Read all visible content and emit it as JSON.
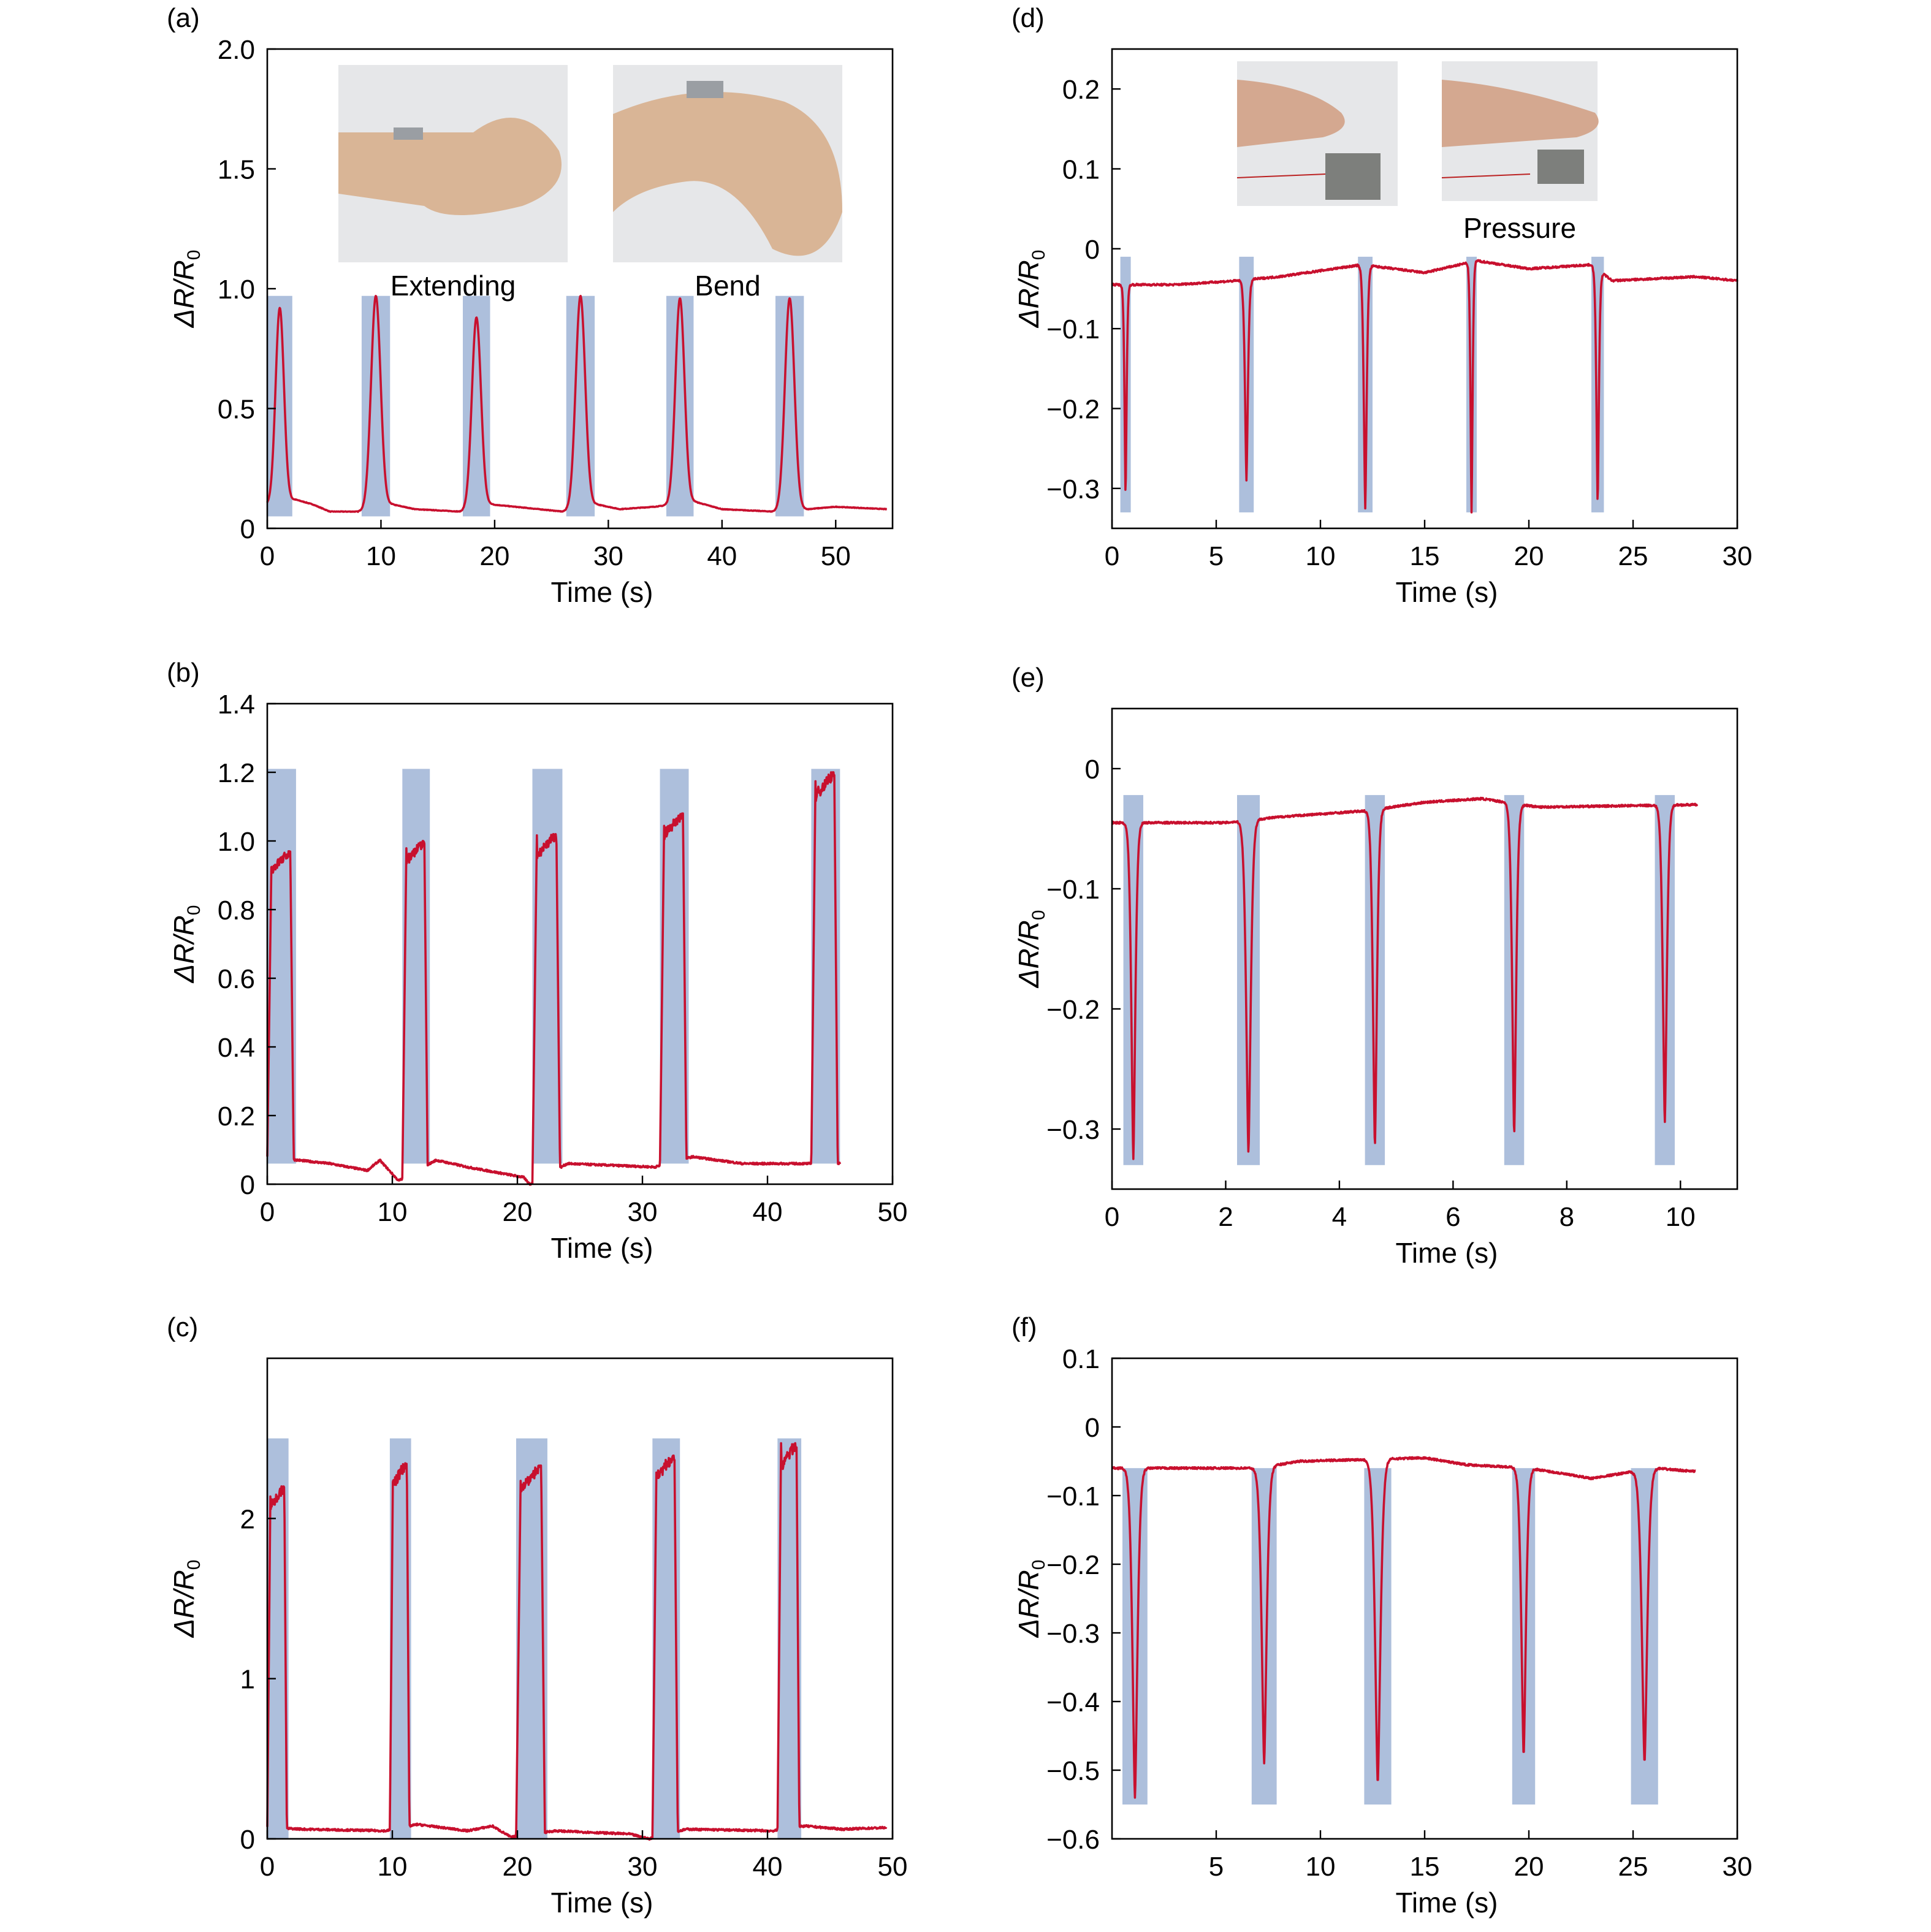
{
  "colors": {
    "trace": "#c8102e",
    "trace_dark": "#8b1a3a",
    "shade": "#9fb4d6",
    "axis": "#000000"
  },
  "chart_data": [
    {
      "panel": "(a)",
      "type": "line",
      "xlabel": "Time (s)",
      "ylabel_main": "ΔR/R",
      "ylabel_sub": "0",
      "xlim": [
        0,
        55
      ],
      "ylim": [
        0,
        2.0
      ],
      "xticks": [
        0,
        10,
        20,
        30,
        40,
        50
      ],
      "xtick_labels": [
        "0",
        "10",
        "20",
        "30",
        "40",
        "50"
      ],
      "yticks": [
        0,
        0.5,
        1.0,
        1.5,
        2.0
      ],
      "ytick_labels": [
        "0",
        "0.5",
        "1.0",
        "1.5",
        "2.0"
      ],
      "shape": "peak",
      "shade_y": [
        0.05,
        0.97
      ],
      "x_end": 54.5,
      "baseline": [
        [
          0,
          0.1
        ],
        [
          2.5,
          0.12
        ],
        [
          4,
          0.1
        ],
        [
          5.5,
          0.07
        ],
        [
          8,
          0.07
        ],
        [
          11,
          0.1
        ],
        [
          13,
          0.08
        ],
        [
          17,
          0.07
        ],
        [
          19.7,
          0.1
        ],
        [
          26,
          0.07
        ],
        [
          29,
          0.1
        ],
        [
          31,
          0.08
        ],
        [
          34,
          0.09
        ],
        [
          37.7,
          0.11
        ],
        [
          40,
          0.08
        ],
        [
          44.5,
          0.07
        ],
        [
          47.5,
          0.08
        ],
        [
          50,
          0.09
        ],
        [
          54.5,
          0.08
        ]
      ],
      "pulses": [
        [
          0,
          2.2,
          0.92
        ],
        [
          8.3,
          10.8,
          0.97
        ],
        [
          17.2,
          19.6,
          0.88
        ],
        [
          26.3,
          28.8,
          0.97
        ],
        [
          35.1,
          37.5,
          0.96
        ],
        [
          44.7,
          47.2,
          0.96
        ]
      ],
      "insets": [
        {
          "caption": "Extending"
        },
        {
          "caption": "Bend"
        }
      ]
    },
    {
      "panel": "(b)",
      "type": "line",
      "xlabel": "Time (s)",
      "ylabel_main": "ΔR/R",
      "ylabel_sub": "0",
      "xlim": [
        0,
        50
      ],
      "ylim": [
        0,
        1.4
      ],
      "xticks": [
        0,
        10,
        20,
        30,
        40,
        50
      ],
      "xtick_labels": [
        "0",
        "10",
        "20",
        "30",
        "40",
        "50"
      ],
      "yticks": [
        0,
        0.2,
        0.4,
        0.6,
        0.8,
        1.0,
        1.2,
        1.4
      ],
      "ytick_labels": [
        "0",
        "0.2",
        "0.4",
        "0.6",
        "0.8",
        "1.0",
        "1.2",
        "1.4"
      ],
      "shape": "square",
      "shade_y": [
        0.06,
        1.21
      ],
      "x_end": 45.8,
      "baseline": [
        [
          0,
          0.08
        ],
        [
          5,
          0.06
        ],
        [
          8,
          0.04
        ],
        [
          9,
          0.07
        ],
        [
          10.5,
          0.01
        ],
        [
          13.5,
          0.07
        ],
        [
          16,
          0.05
        ],
        [
          20.5,
          0.02
        ],
        [
          21,
          0.0
        ],
        [
          24,
          0.06
        ],
        [
          31,
          0.05
        ],
        [
          34,
          0.08
        ],
        [
          38,
          0.06
        ],
        [
          43.5,
          0.06
        ],
        [
          45.8,
          0.06
        ]
      ],
      "pulses": [
        [
          0,
          2.3,
          0.97
        ],
        [
          10.8,
          13,
          1.0
        ],
        [
          21.2,
          23.6,
          1.02
        ],
        [
          31.4,
          33.7,
          1.08
        ],
        [
          43.5,
          45.8,
          1.2
        ]
      ]
    },
    {
      "panel": "(c)",
      "type": "line",
      "xlabel": "Time (s)",
      "ylabel_main": "ΔR/R",
      "ylabel_sub": "0",
      "xlim": [
        0,
        50
      ],
      "ylim": [
        0,
        3
      ],
      "xticks": [
        0,
        10,
        20,
        30,
        40,
        50
      ],
      "xtick_labels": [
        "0",
        "10",
        "20",
        "30",
        "40",
        "50"
      ],
      "yticks": [
        0,
        1,
        2
      ],
      "ytick_labels": [
        "0",
        "1",
        "2"
      ],
      "shape": "square",
      "shade_y": [
        0,
        2.5
      ],
      "x_end": 49.5,
      "baseline": [
        [
          0,
          0.07
        ],
        [
          3,
          0.06
        ],
        [
          9.5,
          0.05
        ],
        [
          12,
          0.09
        ],
        [
          16,
          0.05
        ],
        [
          18,
          0.08
        ],
        [
          19.5,
          0.01
        ],
        [
          23,
          0.05
        ],
        [
          29,
          0.03
        ],
        [
          30.5,
          0.0
        ],
        [
          33.5,
          0.06
        ],
        [
          40.5,
          0.05
        ],
        [
          43,
          0.08
        ],
        [
          46,
          0.06
        ],
        [
          49.5,
          0.07
        ]
      ],
      "pulses": [
        [
          0,
          1.7,
          2.2
        ],
        [
          9.8,
          11.5,
          2.35
        ],
        [
          19.9,
          22.4,
          2.33
        ],
        [
          30.8,
          33,
          2.4
        ],
        [
          40.8,
          42.7,
          2.47
        ]
      ]
    },
    {
      "panel": "(d)",
      "type": "line",
      "xlabel": "Time (s)",
      "ylabel_main": "ΔR/R",
      "ylabel_sub": "0",
      "xlim": [
        0,
        30
      ],
      "ylim": [
        -0.35,
        0.25
      ],
      "xticks": [
        0,
        5,
        10,
        15,
        20,
        25,
        30
      ],
      "xtick_labels": [
        "0",
        "5",
        "10",
        "15",
        "20",
        "25",
        "30"
      ],
      "yticks": [
        -0.3,
        -0.2,
        -0.1,
        0,
        0.1,
        0.2
      ],
      "ytick_labels": [
        "−0.3",
        "−0.2",
        "−0.1",
        "0",
        "0.1",
        "0.2"
      ],
      "shape": "spike",
      "shade_y": [
        -0.33,
        -0.01
      ],
      "x_end": 30,
      "baseline": [
        [
          0,
          -0.045
        ],
        [
          3,
          -0.045
        ],
        [
          6,
          -0.04
        ],
        [
          8,
          -0.035
        ],
        [
          12,
          -0.02
        ],
        [
          15,
          -0.03
        ],
        [
          17.5,
          -0.015
        ],
        [
          20,
          -0.025
        ],
        [
          23,
          -0.02
        ],
        [
          24,
          -0.04
        ],
        [
          28,
          -0.035
        ],
        [
          30,
          -0.04
        ]
      ],
      "pulses": [
        [
          0.4,
          0.9,
          -0.31
        ],
        [
          6.1,
          6.8,
          -0.29
        ],
        [
          11.8,
          12.5,
          -0.325
        ],
        [
          17.0,
          17.5,
          -0.33
        ],
        [
          23.0,
          23.6,
          -0.32
        ]
      ],
      "insets": [
        {
          "caption": ""
        },
        {
          "caption": "Pressure"
        }
      ]
    },
    {
      "panel": "(e)",
      "type": "line",
      "xlabel": "Time (s)",
      "ylabel_main": "ΔR/R",
      "ylabel_sub": "0",
      "xlim": [
        0,
        11
      ],
      "ylim": [
        -0.35,
        0.05
      ],
      "xticks": [
        0,
        2,
        4,
        6,
        8,
        10
      ],
      "xtick_labels": [
        "0",
        "2",
        "4",
        "6",
        "8",
        "10"
      ],
      "yticks": [
        -0.3,
        -0.2,
        -0.1,
        0
      ],
      "ytick_labels": [
        "−0.3",
        "−0.2",
        "−0.1",
        "0"
      ],
      "shape": "spike",
      "shade_y": [
        -0.33,
        -0.022
      ],
      "x_end": 10.3,
      "baseline": [
        [
          0,
          -0.045
        ],
        [
          2,
          -0.045
        ],
        [
          3,
          -0.04
        ],
        [
          4.5,
          -0.035
        ],
        [
          5.5,
          -0.028
        ],
        [
          6.5,
          -0.025
        ],
        [
          7.5,
          -0.032
        ],
        [
          10.3,
          -0.03
        ]
      ],
      "pulses": [
        [
          0.2,
          0.55,
          -0.325
        ],
        [
          2.2,
          2.6,
          -0.32
        ],
        [
          4.45,
          4.8,
          -0.315
        ],
        [
          6.9,
          7.25,
          -0.305
        ],
        [
          9.55,
          9.9,
          -0.295
        ]
      ]
    },
    {
      "panel": "(f)",
      "type": "line",
      "xlabel": "Time (s)",
      "ylabel_main": "ΔR/R",
      "ylabel_sub": "0",
      "xlim": [
        0,
        30
      ],
      "ylim": [
        -0.6,
        0.1
      ],
      "xticks": [
        5,
        10,
        15,
        20,
        25,
        30
      ],
      "xtick_labels": [
        "5",
        "10",
        "15",
        "20",
        "25",
        "30"
      ],
      "yticks": [
        -0.6,
        -0.5,
        -0.4,
        -0.3,
        -0.2,
        -0.1,
        0,
        0.1
      ],
      "ytick_labels": [
        "−0.6",
        "−0.5",
        "−0.4",
        "−0.3",
        "−0.2",
        "−0.1",
        "0",
        "0.1"
      ],
      "shape": "spike",
      "shade_y": [
        -0.55,
        -0.06
      ],
      "x_end": 28,
      "baseline": [
        [
          0,
          -0.06
        ],
        [
          7,
          -0.06
        ],
        [
          9,
          -0.05
        ],
        [
          15,
          -0.045
        ],
        [
          17,
          -0.055
        ],
        [
          20,
          -0.06
        ],
        [
          23,
          -0.075
        ],
        [
          26,
          -0.06
        ],
        [
          28,
          -0.065
        ]
      ],
      "pulses": [
        [
          0.5,
          1.7,
          -0.54
        ],
        [
          6.7,
          7.9,
          -0.49
        ],
        [
          12.1,
          13.4,
          -0.52
        ],
        [
          19.2,
          20.3,
          -0.48
        ],
        [
          24.9,
          26.2,
          -0.49
        ]
      ]
    }
  ]
}
